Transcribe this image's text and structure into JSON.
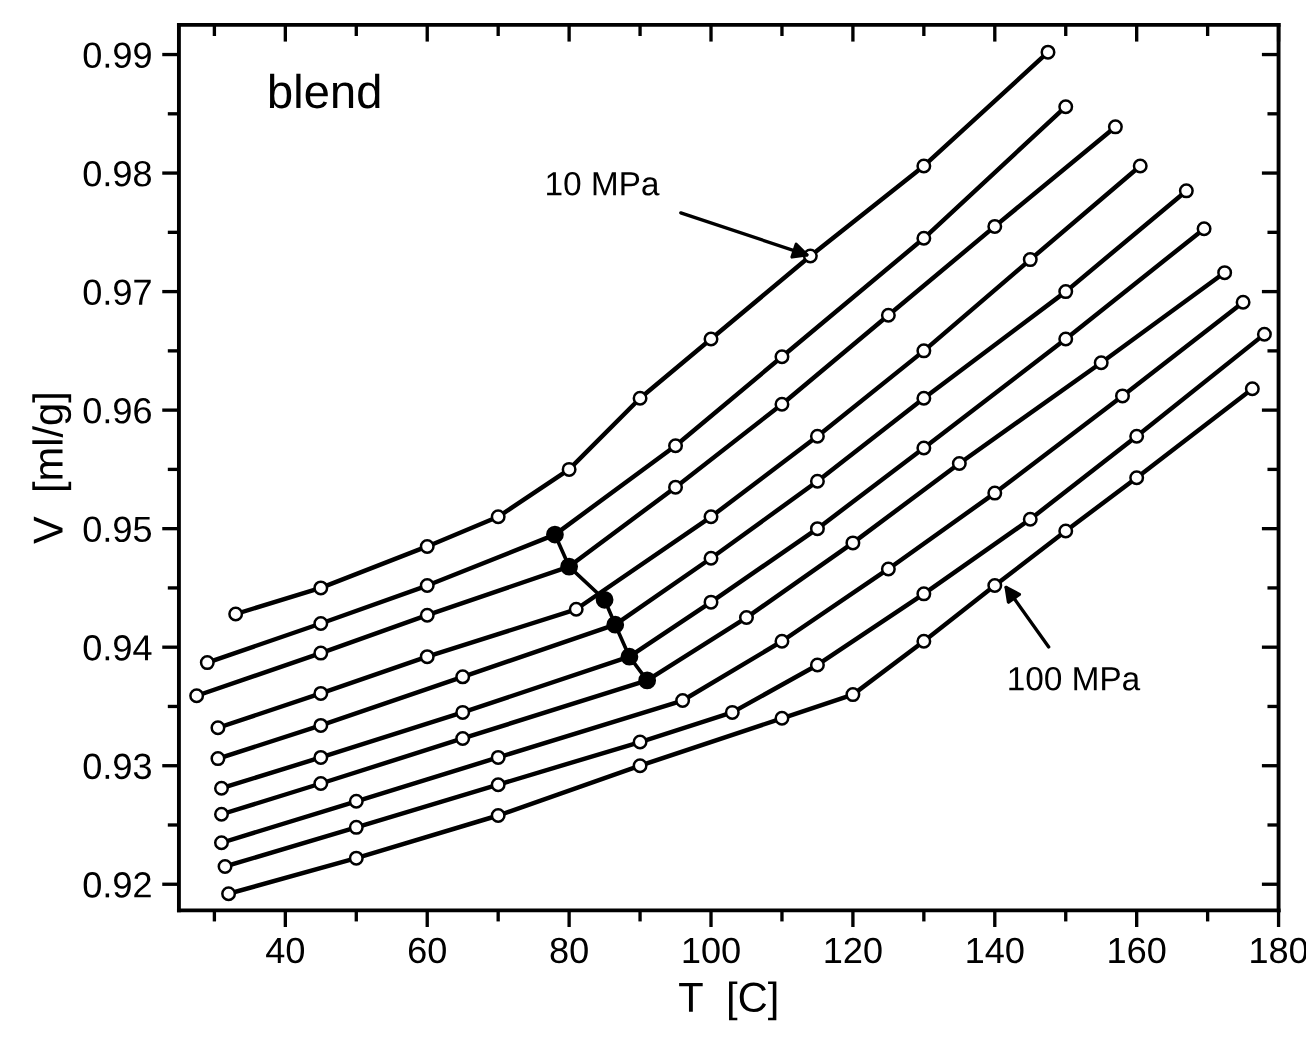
{
  "chart_data": {
    "type": "line",
    "xlabel": "T  [C]",
    "ylabel": "V  [ml/g]",
    "xlim": [
      25,
      180
    ],
    "ylim": [
      0.9178,
      0.9925
    ],
    "xticks": [
      40,
      60,
      80,
      100,
      120,
      140,
      160,
      180
    ],
    "yticks": [
      0.92,
      0.93,
      0.94,
      0.95,
      0.96,
      0.97,
      0.98,
      0.99
    ],
    "grid": false,
    "legend": false,
    "marker": "circle",
    "line_style": "solid",
    "annotations": [
      {
        "text": "blend"
      },
      {
        "text": "10 MPa",
        "x": 114,
        "y": 0.973
      },
      {
        "text": "100 MPa",
        "x": 141.3,
        "y": 0.9453
      }
    ],
    "series": [
      {
        "color": "#000000",
        "x": [
          33,
          45,
          60,
          70,
          80,
          90,
          100,
          114,
          130,
          147.5
        ],
        "values": [
          0.9428,
          0.945,
          0.9485,
          0.951,
          0.955,
          0.961,
          0.966,
          0.973,
          0.9806,
          0.9902
        ]
      },
      {
        "color": "#000000",
        "x": [
          29,
          45,
          60,
          78,
          95,
          110,
          130,
          150
        ],
        "values": [
          0.9387,
          0.942,
          0.9452,
          0.9495,
          0.957,
          0.9645,
          0.9745,
          0.9856
        ]
      },
      {
        "color": "#000000",
        "x": [
          27.5,
          45,
          60,
          80,
          95,
          110,
          125,
          140,
          157
        ],
        "values": [
          0.9359,
          0.9395,
          0.9427,
          0.9468,
          0.9535,
          0.9605,
          0.968,
          0.9755,
          0.9839
        ]
      },
      {
        "color": "#000000",
        "x": [
          30.5,
          45,
          60,
          81,
          100,
          115,
          130,
          145,
          160.5
        ],
        "values": [
          0.9332,
          0.9361,
          0.9392,
          0.9432,
          0.951,
          0.9578,
          0.965,
          0.9727,
          0.9806
        ]
      },
      {
        "color": "#000000",
        "x": [
          30.5,
          45,
          65,
          86.5,
          100,
          115,
          130,
          150,
          167
        ],
        "values": [
          0.9306,
          0.9334,
          0.9375,
          0.9419,
          0.9475,
          0.954,
          0.961,
          0.97,
          0.9785
        ]
      },
      {
        "color": "#000000",
        "x": [
          31,
          45,
          65,
          88.5,
          100,
          115,
          130,
          150,
          169.5
        ],
        "values": [
          0.9281,
          0.9307,
          0.9345,
          0.9392,
          0.9438,
          0.95,
          0.9568,
          0.966,
          0.9753
        ]
      },
      {
        "color": "#000000",
        "x": [
          31,
          45,
          65,
          91,
          105,
          120,
          135,
          155,
          172.4
        ],
        "values": [
          0.9259,
          0.9285,
          0.9323,
          0.9372,
          0.9425,
          0.9488,
          0.9555,
          0.964,
          0.9716
        ]
      },
      {
        "color": "#000000",
        "x": [
          31,
          50,
          70,
          96,
          110,
          125,
          140,
          158,
          175
        ],
        "values": [
          0.9235,
          0.927,
          0.9307,
          0.9355,
          0.9405,
          0.9466,
          0.953,
          0.9612,
          0.9691
        ]
      },
      {
        "color": "#000000",
        "x": [
          31.5,
          50,
          70,
          90,
          103,
          115,
          130,
          145,
          160,
          178
        ],
        "values": [
          0.9215,
          0.9248,
          0.9284,
          0.932,
          0.9345,
          0.9385,
          0.9445,
          0.9508,
          0.9578,
          0.9664
        ]
      },
      {
        "color": "#000000",
        "x": [
          32,
          50,
          70,
          90,
          110,
          120,
          130,
          140,
          150,
          160,
          176.3
        ],
        "values": [
          0.9192,
          0.9222,
          0.9258,
          0.93,
          0.934,
          0.936,
          0.9405,
          0.9452,
          0.9498,
          0.9543,
          0.9618
        ]
      },
      {
        "color": "#000000",
        "marker": "circle",
        "x": [
          78,
          80,
          85,
          86.5,
          88.5,
          91
        ],
        "values": [
          0.9495,
          0.9468,
          0.944,
          0.9419,
          0.9392,
          0.9372
        ]
      }
    ]
  }
}
